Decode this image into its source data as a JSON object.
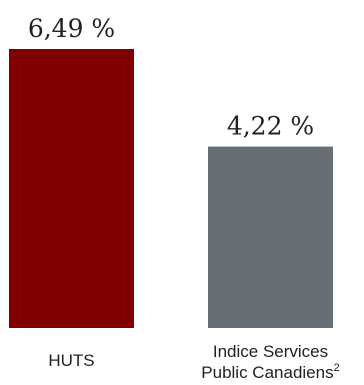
{
  "chart_data": {
    "type": "bar",
    "title": "",
    "xlabel": "",
    "ylabel": "",
    "ylim": [
      0,
      6.49
    ],
    "grid": false,
    "legend": "none",
    "categories": [
      {
        "label": "HUTS",
        "label_line2": "",
        "sup": ""
      },
      {
        "label": "Indice Services",
        "label_line2": "Public Canadiens",
        "sup": "2"
      }
    ],
    "values": [
      6.49,
      4.22
    ],
    "value_labels": [
      "6,49 %",
      "4,22 %"
    ],
    "colors": [
      "#800000",
      "#686f74"
    ]
  }
}
